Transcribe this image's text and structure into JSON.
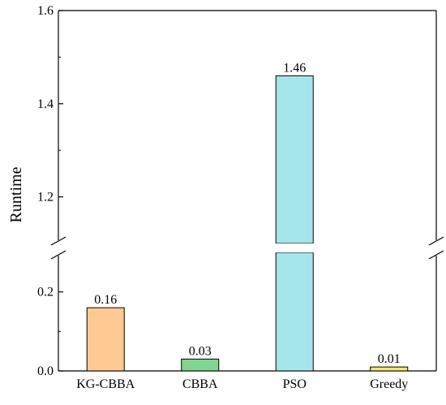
{
  "chart_data": {
    "type": "bar",
    "title": "",
    "xlabel": "",
    "ylabel": "Runtime",
    "categories": [
      "KG-CBBA",
      "CBBA",
      "PSO",
      "Greedy"
    ],
    "values": [
      0.16,
      0.03,
      1.46,
      0.01
    ],
    "data_labels": [
      "0.16",
      "0.03",
      "1.46",
      "0.01"
    ],
    "colors": [
      "#FFC993",
      "#7FD591",
      "#A5E5EC",
      "#F3E76F"
    ],
    "y_axis_break": {
      "lower_range": [
        0.0,
        0.3
      ],
      "upper_range": [
        1.1,
        1.6
      ]
    },
    "lower_ticks": [
      0.0,
      0.2
    ],
    "upper_ticks": [
      1.2,
      1.4,
      1.6
    ],
    "lower_tick_labels": [
      "0.0",
      "0.2"
    ],
    "upper_tick_labels": [
      "1.2",
      "1.4",
      "1.6"
    ],
    "grid": false,
    "legend": "none"
  }
}
